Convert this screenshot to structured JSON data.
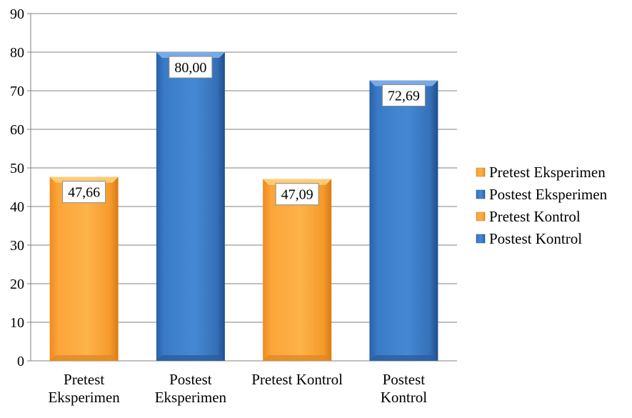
{
  "chart_data": {
    "type": "bar",
    "title": "",
    "xlabel": "",
    "ylabel": "",
    "ylim": [
      0,
      90
    ],
    "yticks": [
      0,
      10,
      20,
      30,
      40,
      50,
      60,
      70,
      80,
      90
    ],
    "grid": true,
    "legend_position": "right",
    "categories": [
      [
        "Pretest",
        "Eksperimen"
      ],
      [
        "Postest",
        "Eksperimen"
      ],
      [
        "Pretest Kontrol"
      ],
      [
        "Postest",
        "Kontrol"
      ]
    ],
    "values": [
      47.66,
      80.0,
      47.09,
      72.69
    ],
    "value_labels": [
      "47,66",
      "80,00",
      "47,09",
      "72,69"
    ],
    "colors": [
      "#F7A234",
      "#3A78C2",
      "#F7A234",
      "#3A78C2"
    ],
    "legend": [
      {
        "label": "Pretest Eksperimen",
        "color": "#F7A234"
      },
      {
        "label": "Postest Eksperimen",
        "color": "#3A78C2"
      },
      {
        "label": "Pretest Kontrol",
        "color": "#F7A234"
      },
      {
        "label": "Postest Kontrol",
        "color": "#3A78C2"
      }
    ]
  }
}
